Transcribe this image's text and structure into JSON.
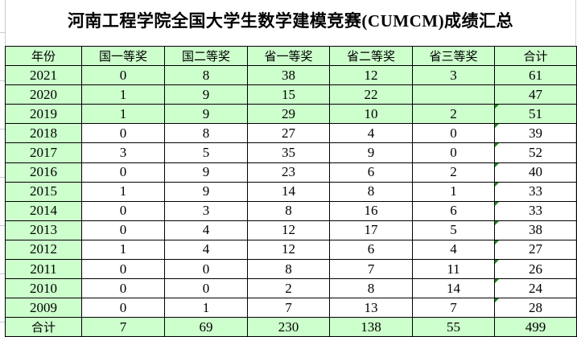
{
  "title": "河南工程学院全国大学生数学建模竞赛(CUMCM)成绩汇总",
  "colors": {
    "header_fill": "#ccffcc",
    "cell_fill": "#ffffff",
    "error_marker": "#1a8a1a"
  },
  "headers": [
    "年份",
    "国一等奖",
    "国二等奖",
    "省一等奖",
    "省二等奖",
    "省三等奖",
    "合计"
  ],
  "rows": [
    {
      "cells": [
        "2021",
        "0",
        "8",
        "38",
        "12",
        "3",
        "61"
      ],
      "highlight": true,
      "marker": false
    },
    {
      "cells": [
        "2020",
        "1",
        "9",
        "15",
        "22",
        "",
        "47"
      ],
      "highlight": true,
      "marker": false
    },
    {
      "cells": [
        "2019",
        "1",
        "9",
        "29",
        "10",
        "2",
        "51"
      ],
      "highlight": true,
      "marker": true
    },
    {
      "cells": [
        "2018",
        "0",
        "8",
        "27",
        "4",
        "0",
        "39"
      ],
      "highlight": false,
      "marker": true
    },
    {
      "cells": [
        "2017",
        "3",
        "5",
        "35",
        "9",
        "0",
        "52"
      ],
      "highlight": false,
      "marker": true
    },
    {
      "cells": [
        "2016",
        "0",
        "9",
        "23",
        "6",
        "2",
        "40"
      ],
      "highlight": false,
      "marker": true
    },
    {
      "cells": [
        "2015",
        "1",
        "9",
        "14",
        "8",
        "1",
        "33"
      ],
      "highlight": false,
      "marker": true
    },
    {
      "cells": [
        "2014",
        "0",
        "3",
        "8",
        "16",
        "6",
        "33"
      ],
      "highlight": false,
      "marker": true
    },
    {
      "cells": [
        "2013",
        "0",
        "4",
        "12",
        "17",
        "5",
        "38"
      ],
      "highlight": false,
      "marker": true
    },
    {
      "cells": [
        "2012",
        "1",
        "4",
        "12",
        "6",
        "4",
        "27"
      ],
      "highlight": false,
      "marker": true
    },
    {
      "cells": [
        "2011",
        "0",
        "0",
        "8",
        "7",
        "11",
        "26"
      ],
      "highlight": false,
      "marker": true
    },
    {
      "cells": [
        "2010",
        "0",
        "0",
        "2",
        "8",
        "14",
        "24"
      ],
      "highlight": false,
      "marker": true
    },
    {
      "cells": [
        "2009",
        "0",
        "1",
        "7",
        "13",
        "7",
        "28"
      ],
      "highlight": false,
      "marker": true
    }
  ],
  "total": [
    "合计",
    "7",
    "69",
    "230",
    "138",
    "55",
    "499"
  ]
}
